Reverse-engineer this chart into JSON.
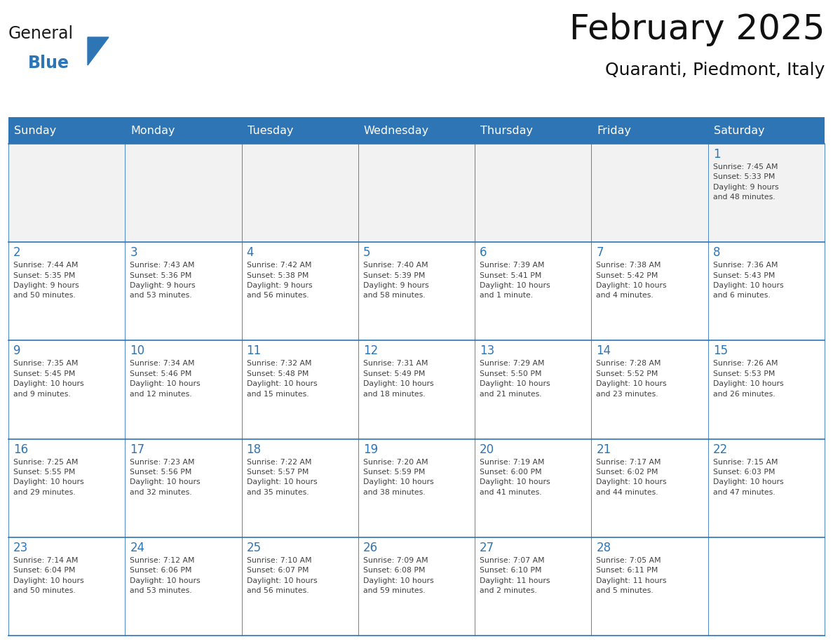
{
  "title": "February 2025",
  "subtitle": "Quaranti, Piedmont, Italy",
  "header_bg": "#2E75B6",
  "header_text_color": "#FFFFFF",
  "cell_border_color": "#2E75B6",
  "day_number_color": "#2E75B6",
  "info_text_color": "#404040",
  "background_color": "#FFFFFF",
  "first_row_bg": "#E8E8E8",
  "logo_general_color": "#1a1a1a",
  "logo_blue_color": "#2E75B6",
  "logo_triangle_color": "#2E75B6",
  "days_of_week": [
    "Sunday",
    "Monday",
    "Tuesday",
    "Wednesday",
    "Thursday",
    "Friday",
    "Saturday"
  ],
  "weeks": [
    [
      {
        "day": null,
        "info": null
      },
      {
        "day": null,
        "info": null
      },
      {
        "day": null,
        "info": null
      },
      {
        "day": null,
        "info": null
      },
      {
        "day": null,
        "info": null
      },
      {
        "day": null,
        "info": null
      },
      {
        "day": 1,
        "info": "Sunrise: 7:45 AM\nSunset: 5:33 PM\nDaylight: 9 hours\nand 48 minutes."
      }
    ],
    [
      {
        "day": 2,
        "info": "Sunrise: 7:44 AM\nSunset: 5:35 PM\nDaylight: 9 hours\nand 50 minutes."
      },
      {
        "day": 3,
        "info": "Sunrise: 7:43 AM\nSunset: 5:36 PM\nDaylight: 9 hours\nand 53 minutes."
      },
      {
        "day": 4,
        "info": "Sunrise: 7:42 AM\nSunset: 5:38 PM\nDaylight: 9 hours\nand 56 minutes."
      },
      {
        "day": 5,
        "info": "Sunrise: 7:40 AM\nSunset: 5:39 PM\nDaylight: 9 hours\nand 58 minutes."
      },
      {
        "day": 6,
        "info": "Sunrise: 7:39 AM\nSunset: 5:41 PM\nDaylight: 10 hours\nand 1 minute."
      },
      {
        "day": 7,
        "info": "Sunrise: 7:38 AM\nSunset: 5:42 PM\nDaylight: 10 hours\nand 4 minutes."
      },
      {
        "day": 8,
        "info": "Sunrise: 7:36 AM\nSunset: 5:43 PM\nDaylight: 10 hours\nand 6 minutes."
      }
    ],
    [
      {
        "day": 9,
        "info": "Sunrise: 7:35 AM\nSunset: 5:45 PM\nDaylight: 10 hours\nand 9 minutes."
      },
      {
        "day": 10,
        "info": "Sunrise: 7:34 AM\nSunset: 5:46 PM\nDaylight: 10 hours\nand 12 minutes."
      },
      {
        "day": 11,
        "info": "Sunrise: 7:32 AM\nSunset: 5:48 PM\nDaylight: 10 hours\nand 15 minutes."
      },
      {
        "day": 12,
        "info": "Sunrise: 7:31 AM\nSunset: 5:49 PM\nDaylight: 10 hours\nand 18 minutes."
      },
      {
        "day": 13,
        "info": "Sunrise: 7:29 AM\nSunset: 5:50 PM\nDaylight: 10 hours\nand 21 minutes."
      },
      {
        "day": 14,
        "info": "Sunrise: 7:28 AM\nSunset: 5:52 PM\nDaylight: 10 hours\nand 23 minutes."
      },
      {
        "day": 15,
        "info": "Sunrise: 7:26 AM\nSunset: 5:53 PM\nDaylight: 10 hours\nand 26 minutes."
      }
    ],
    [
      {
        "day": 16,
        "info": "Sunrise: 7:25 AM\nSunset: 5:55 PM\nDaylight: 10 hours\nand 29 minutes."
      },
      {
        "day": 17,
        "info": "Sunrise: 7:23 AM\nSunset: 5:56 PM\nDaylight: 10 hours\nand 32 minutes."
      },
      {
        "day": 18,
        "info": "Sunrise: 7:22 AM\nSunset: 5:57 PM\nDaylight: 10 hours\nand 35 minutes."
      },
      {
        "day": 19,
        "info": "Sunrise: 7:20 AM\nSunset: 5:59 PM\nDaylight: 10 hours\nand 38 minutes."
      },
      {
        "day": 20,
        "info": "Sunrise: 7:19 AM\nSunset: 6:00 PM\nDaylight: 10 hours\nand 41 minutes."
      },
      {
        "day": 21,
        "info": "Sunrise: 7:17 AM\nSunset: 6:02 PM\nDaylight: 10 hours\nand 44 minutes."
      },
      {
        "day": 22,
        "info": "Sunrise: 7:15 AM\nSunset: 6:03 PM\nDaylight: 10 hours\nand 47 minutes."
      }
    ],
    [
      {
        "day": 23,
        "info": "Sunrise: 7:14 AM\nSunset: 6:04 PM\nDaylight: 10 hours\nand 50 minutes."
      },
      {
        "day": 24,
        "info": "Sunrise: 7:12 AM\nSunset: 6:06 PM\nDaylight: 10 hours\nand 53 minutes."
      },
      {
        "day": 25,
        "info": "Sunrise: 7:10 AM\nSunset: 6:07 PM\nDaylight: 10 hours\nand 56 minutes."
      },
      {
        "day": 26,
        "info": "Sunrise: 7:09 AM\nSunset: 6:08 PM\nDaylight: 10 hours\nand 59 minutes."
      },
      {
        "day": 27,
        "info": "Sunrise: 7:07 AM\nSunset: 6:10 PM\nDaylight: 11 hours\nand 2 minutes."
      },
      {
        "day": 28,
        "info": "Sunrise: 7:05 AM\nSunset: 6:11 PM\nDaylight: 11 hours\nand 5 minutes."
      },
      {
        "day": null,
        "info": null
      }
    ]
  ]
}
